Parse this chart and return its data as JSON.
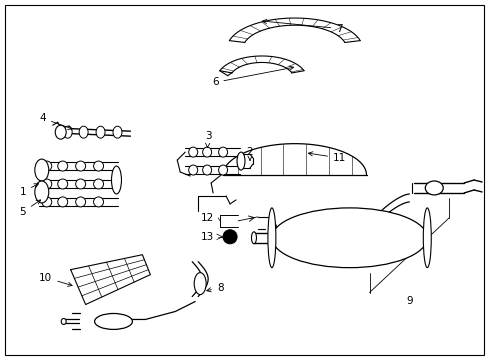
{
  "background_color": "#ffffff",
  "border_color": "#000000",
  "figsize": [
    4.89,
    3.6
  ],
  "dpi": 100,
  "lc": "#000000",
  "lw": 0.7,
  "fs": 7.5
}
